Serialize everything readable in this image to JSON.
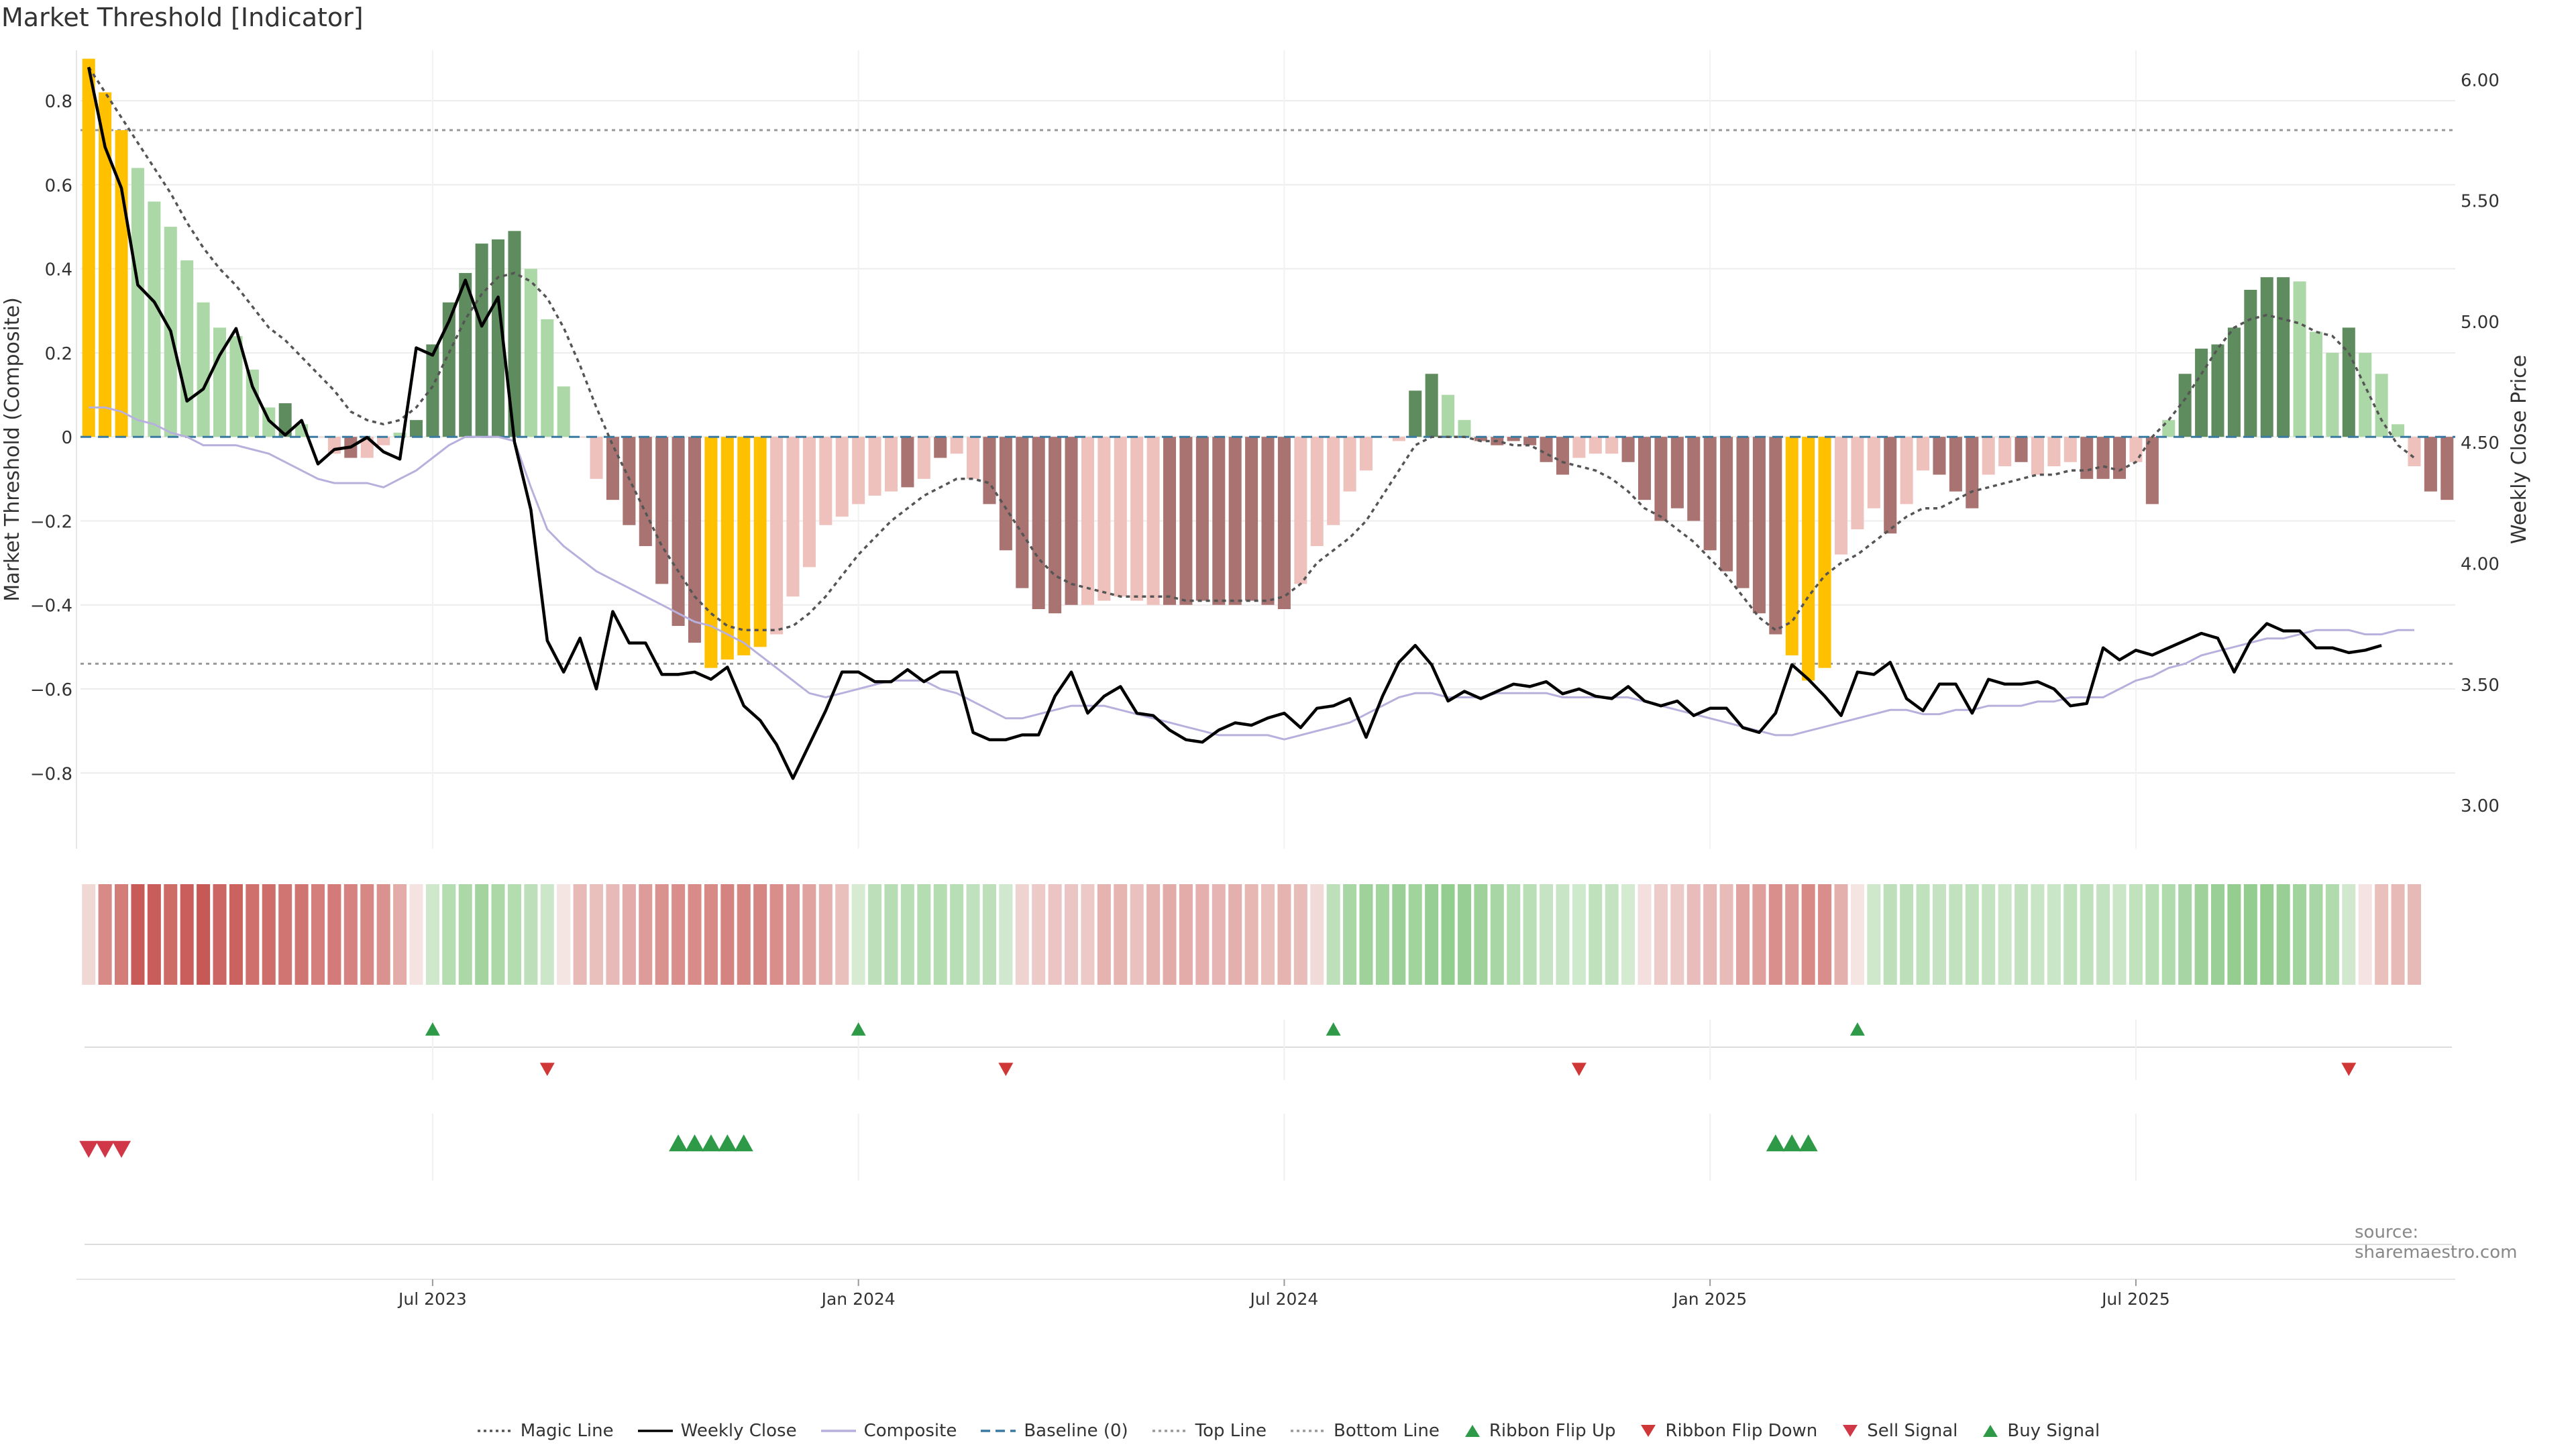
{
  "title": "Market Threshold [Indicator]",
  "source": "source: sharemaestro.com",
  "legend": [
    {
      "label": "Magic Line",
      "kind": "dotted",
      "color": "#555555"
    },
    {
      "label": "Weekly Close",
      "kind": "solid",
      "color": "#000000"
    },
    {
      "label": "Composite",
      "kind": "solid",
      "color": "#b8b0dc"
    },
    {
      "label": "Baseline (0)",
      "kind": "dashed",
      "color": "#3a7aa0"
    },
    {
      "label": "Top Line",
      "kind": "dotted",
      "color": "#999999"
    },
    {
      "label": "Bottom Line",
      "kind": "dotted",
      "color": "#999999"
    },
    {
      "label": "Ribbon Flip Up",
      "kind": "tri-up",
      "color": "#2e9a48"
    },
    {
      "label": "Ribbon Flip Down",
      "kind": "tri-down",
      "color": "#d03838"
    },
    {
      "label": "Sell Signal",
      "kind": "tri-down",
      "color": "#d03848"
    },
    {
      "label": "Buy Signal",
      "kind": "tri-up",
      "color": "#2e9a48"
    }
  ],
  "chart_data": {
    "type": "bar",
    "ylabel": "Market Threshold (Composite)",
    "y2label": "Weekly Close Price",
    "ylim": [
      -0.98,
      0.92
    ],
    "y2lim": [
      2.82,
      6.12
    ],
    "yticks": [
      -0.8,
      -0.6,
      -0.4,
      -0.2,
      0,
      0.2,
      0.4,
      0.6,
      0.8
    ],
    "ytick_labels": [
      "−0.8",
      "−0.6",
      "−0.4",
      "−0.2",
      "0",
      "0.2",
      "0.4",
      "0.6",
      "0.8"
    ],
    "y2ticks": [
      3.0,
      3.5,
      4.0,
      4.5,
      5.0,
      5.5,
      6.0
    ],
    "y2tick_labels": [
      "3.00",
      "3.50",
      "4.00",
      "4.50",
      "5.00",
      "5.50",
      "6.00"
    ],
    "x_ticks": [
      {
        "label": "Jul 2023",
        "index": 21
      },
      {
        "label": "Jan 2024",
        "index": 47
      },
      {
        "label": "Jul 2024",
        "index": 73
      },
      {
        "label": "Jan 2025",
        "index": 99
      },
      {
        "label": "Jul 2025",
        "index": 125
      }
    ],
    "top_line": 0.73,
    "bottom_line": -0.54,
    "baseline": 0,
    "composite": [
      0.9,
      0.82,
      0.73,
      0.64,
      0.56,
      0.5,
      0.42,
      0.32,
      0.26,
      0.24,
      0.16,
      0.07,
      0.08,
      0.03,
      0.0,
      -0.04,
      -0.05,
      -0.05,
      -0.02,
      0.01,
      0.04,
      0.22,
      0.32,
      0.39,
      0.46,
      0.47,
      0.49,
      0.4,
      0.28,
      0.12,
      0.0,
      -0.1,
      -0.15,
      -0.21,
      -0.26,
      -0.35,
      -0.45,
      -0.49,
      -0.55,
      -0.53,
      -0.52,
      -0.5,
      -0.47,
      -0.38,
      -0.31,
      -0.21,
      -0.19,
      -0.16,
      -0.14,
      -0.13,
      -0.12,
      -0.1,
      -0.05,
      -0.04,
      -0.1,
      -0.16,
      -0.27,
      -0.36,
      -0.41,
      -0.42,
      -0.4,
      -0.4,
      -0.39,
      -0.38,
      -0.39,
      -0.4,
      -0.4,
      -0.4,
      -0.39,
      -0.4,
      -0.4,
      -0.39,
      -0.4,
      -0.41,
      -0.35,
      -0.26,
      -0.21,
      -0.13,
      -0.08,
      0.0,
      -0.01,
      0.11,
      0.15,
      0.1,
      0.04,
      -0.01,
      -0.02,
      -0.01,
      -0.02,
      -0.06,
      -0.09,
      -0.05,
      -0.04,
      -0.04,
      -0.06,
      -0.15,
      -0.2,
      -0.17,
      -0.2,
      -0.27,
      -0.32,
      -0.36,
      -0.42,
      -0.47,
      -0.52,
      -0.58,
      -0.55,
      -0.28,
      -0.22,
      -0.17,
      -0.23,
      -0.16,
      -0.08,
      -0.09,
      -0.13,
      -0.17,
      -0.09,
      -0.07,
      -0.06,
      -0.09,
      -0.07,
      -0.06,
      -0.1,
      -0.1,
      -0.1,
      -0.06,
      -0.16,
      0.04,
      0.15,
      0.21,
      0.22,
      0.26,
      0.35,
      0.38,
      0.38,
      0.37,
      0.25,
      0.2,
      0.26,
      0.2,
      0.15,
      0.03,
      -0.07,
      -0.13,
      -0.15
    ],
    "bar_colors": [
      "#ffc000",
      "#ffc000",
      "#ffc000",
      "#acd8a7",
      "#acd8a7",
      "#acd8a7",
      "#acd8a7",
      "#acd8a7",
      "#acd8a7",
      "#acd8a7",
      "#acd8a7",
      "#acd8a7",
      "#5e8c5e",
      "#acd8a7",
      "#eec1bc",
      "#eec1bc",
      "#a87370",
      "#eec1bc",
      "#eec1bc",
      "#acd8a7",
      "#5e8c5e",
      "#5e8c5e",
      "#5e8c5e",
      "#5e8c5e",
      "#5e8c5e",
      "#5e8c5e",
      "#5e8c5e",
      "#acd8a7",
      "#acd8a7",
      "#acd8a7",
      "#eec1bc",
      "#eec1bc",
      "#a87370",
      "#a87370",
      "#a87370",
      "#a87370",
      "#a87370",
      "#a87370",
      "#ffc000",
      "#ffc000",
      "#ffc000",
      "#ffc000",
      "#eec1bc",
      "#eec1bc",
      "#eec1bc",
      "#eec1bc",
      "#eec1bc",
      "#eec1bc",
      "#eec1bc",
      "#eec1bc",
      "#a87370",
      "#eec1bc",
      "#a87370",
      "#eec1bc",
      "#eec1bc",
      "#a87370",
      "#a87370",
      "#a87370",
      "#a87370",
      "#a87370",
      "#a87370",
      "#eec1bc",
      "#eec1bc",
      "#eec1bc",
      "#eec1bc",
      "#eec1bc",
      "#a87370",
      "#a87370",
      "#a87370",
      "#a87370",
      "#a87370",
      "#a87370",
      "#a87370",
      "#a87370",
      "#eec1bc",
      "#eec1bc",
      "#eec1bc",
      "#eec1bc",
      "#eec1bc",
      "#eec1bc",
      "#eec1bc",
      "#5e8c5e",
      "#5e8c5e",
      "#acd8a7",
      "#acd8a7",
      "#a87370",
      "#a87370",
      "#a87370",
      "#a87370",
      "#a87370",
      "#a87370",
      "#eec1bc",
      "#eec1bc",
      "#eec1bc",
      "#a87370",
      "#a87370",
      "#a87370",
      "#a87370",
      "#a87370",
      "#a87370",
      "#a87370",
      "#a87370",
      "#a87370",
      "#a87370",
      "#ffc000",
      "#ffc000",
      "#ffc000",
      "#eec1bc",
      "#eec1bc",
      "#eec1bc",
      "#a87370",
      "#eec1bc",
      "#eec1bc",
      "#a87370",
      "#a87370",
      "#a87370",
      "#eec1bc",
      "#eec1bc",
      "#a87370",
      "#eec1bc",
      "#eec1bc",
      "#eec1bc",
      "#a87370",
      "#a87370",
      "#a87370",
      "#eec1bc",
      "#a87370",
      "#acd8a7",
      "#5e8c5e",
      "#5e8c5e",
      "#5e8c5e",
      "#5e8c5e",
      "#5e8c5e",
      "#5e8c5e",
      "#5e8c5e",
      "#acd8a7",
      "#acd8a7",
      "#acd8a7",
      "#5e8c5e",
      "#acd8a7",
      "#acd8a7",
      "#acd8a7",
      "#eec1bc",
      "#a87370",
      "#a87370"
    ],
    "weekly_close": [
      6.05,
      5.72,
      5.55,
      5.15,
      5.08,
      4.96,
      4.67,
      4.72,
      4.86,
      4.97,
      4.73,
      4.59,
      4.53,
      4.59,
      4.41,
      4.47,
      4.48,
      4.52,
      4.46,
      4.43,
      4.89,
      4.86,
      5.0,
      5.17,
      4.98,
      5.1,
      4.5,
      4.22,
      3.68,
      3.55,
      3.69,
      3.48,
      3.8,
      3.67,
      3.67,
      3.54,
      3.54,
      3.55,
      3.52,
      3.57,
      3.41,
      3.35,
      3.25,
      3.11,
      3.25,
      3.39,
      3.55,
      3.55,
      3.51,
      3.51,
      3.56,
      3.51,
      3.55,
      3.55,
      3.3,
      3.27,
      3.27,
      3.29,
      3.29,
      3.45,
      3.55,
      3.38,
      3.45,
      3.49,
      3.38,
      3.37,
      3.31,
      3.27,
      3.26,
      3.31,
      3.34,
      3.33,
      3.36,
      3.38,
      3.32,
      3.4,
      3.41,
      3.44,
      3.28,
      3.45,
      3.59,
      3.66,
      3.58,
      3.43,
      3.47,
      3.44,
      3.47,
      3.5,
      3.49,
      3.51,
      3.46,
      3.48,
      3.45,
      3.44,
      3.49,
      3.43,
      3.41,
      3.43,
      3.37,
      3.4,
      3.4,
      3.32,
      3.3,
      3.38,
      3.58,
      3.52,
      3.45,
      3.37,
      3.55,
      3.54,
      3.59,
      3.44,
      3.39,
      3.5,
      3.5,
      3.38,
      3.52,
      3.5,
      3.5,
      3.51,
      3.48,
      3.41,
      3.42,
      3.65,
      3.6,
      3.64,
      3.62,
      3.65,
      3.68,
      3.71,
      3.69,
      3.55,
      3.68,
      3.75,
      3.72,
      3.72,
      3.65,
      3.65,
      3.63,
      3.64,
      3.66
    ],
    "composite_line": [
      0.07,
      0.07,
      0.06,
      0.04,
      0.03,
      0.01,
      0.0,
      -0.02,
      -0.02,
      -0.02,
      -0.03,
      -0.04,
      -0.06,
      -0.08,
      -0.1,
      -0.11,
      -0.11,
      -0.11,
      -0.12,
      -0.1,
      -0.08,
      -0.05,
      -0.02,
      0.0,
      0.0,
      0.0,
      -0.01,
      -0.12,
      -0.22,
      -0.26,
      -0.29,
      -0.32,
      -0.34,
      -0.36,
      -0.38,
      -0.4,
      -0.42,
      -0.44,
      -0.45,
      -0.47,
      -0.49,
      -0.52,
      -0.55,
      -0.58,
      -0.61,
      -0.62,
      -0.61,
      -0.6,
      -0.59,
      -0.58,
      -0.58,
      -0.58,
      -0.6,
      -0.61,
      -0.63,
      -0.65,
      -0.67,
      -0.67,
      -0.66,
      -0.65,
      -0.64,
      -0.64,
      -0.64,
      -0.65,
      -0.66,
      -0.67,
      -0.68,
      -0.69,
      -0.7,
      -0.71,
      -0.71,
      -0.71,
      -0.71,
      -0.72,
      -0.71,
      -0.7,
      -0.69,
      -0.68,
      -0.66,
      -0.64,
      -0.62,
      -0.61,
      -0.61,
      -0.62,
      -0.62,
      -0.62,
      -0.61,
      -0.61,
      -0.61,
      -0.61,
      -0.62,
      -0.62,
      -0.62,
      -0.62,
      -0.62,
      -0.63,
      -0.64,
      -0.65,
      -0.66,
      -0.67,
      -0.68,
      -0.69,
      -0.7,
      -0.71,
      -0.71,
      -0.7,
      -0.69,
      -0.68,
      -0.67,
      -0.66,
      -0.65,
      -0.65,
      -0.66,
      -0.66,
      -0.65,
      -0.65,
      -0.64,
      -0.64,
      -0.64,
      -0.63,
      -0.63,
      -0.62,
      -0.62,
      -0.62,
      -0.6,
      -0.58,
      -0.57,
      -0.55,
      -0.54,
      -0.52,
      -0.51,
      -0.5,
      -0.49,
      -0.48,
      -0.48,
      -0.47,
      -0.46,
      -0.46,
      -0.46,
      -0.47,
      -0.47,
      -0.46,
      -0.46
    ],
    "magic_line": [
      0.88,
      0.82,
      0.76,
      0.7,
      0.64,
      0.58,
      0.51,
      0.45,
      0.4,
      0.36,
      0.31,
      0.26,
      0.23,
      0.19,
      0.15,
      0.11,
      0.06,
      0.04,
      0.03,
      0.04,
      0.07,
      0.12,
      0.2,
      0.28,
      0.34,
      0.38,
      0.39,
      0.37,
      0.33,
      0.26,
      0.17,
      0.07,
      -0.02,
      -0.1,
      -0.18,
      -0.26,
      -0.32,
      -0.38,
      -0.42,
      -0.45,
      -0.46,
      -0.46,
      -0.46,
      -0.45,
      -0.42,
      -0.38,
      -0.33,
      -0.28,
      -0.24,
      -0.2,
      -0.17,
      -0.14,
      -0.12,
      -0.1,
      -0.1,
      -0.11,
      -0.17,
      -0.23,
      -0.29,
      -0.33,
      -0.35,
      -0.36,
      -0.37,
      -0.38,
      -0.38,
      -0.38,
      -0.38,
      -0.39,
      -0.39,
      -0.39,
      -0.39,
      -0.39,
      -0.39,
      -0.38,
      -0.35,
      -0.3,
      -0.27,
      -0.24,
      -0.2,
      -0.14,
      -0.08,
      -0.02,
      0.0,
      0.0,
      0.0,
      -0.01,
      -0.01,
      -0.02,
      -0.02,
      -0.04,
      -0.06,
      -0.07,
      -0.08,
      -0.1,
      -0.13,
      -0.17,
      -0.19,
      -0.22,
      -0.25,
      -0.29,
      -0.33,
      -0.38,
      -0.43,
      -0.46,
      -0.44,
      -0.38,
      -0.33,
      -0.3,
      -0.28,
      -0.25,
      -0.22,
      -0.19,
      -0.17,
      -0.17,
      -0.15,
      -0.13,
      -0.12,
      -0.11,
      -0.1,
      -0.09,
      -0.09,
      -0.08,
      -0.08,
      -0.07,
      -0.08,
      -0.06,
      0.0,
      0.04,
      0.09,
      0.15,
      0.21,
      0.26,
      0.28,
      0.29,
      0.28,
      0.27,
      0.25,
      0.24,
      0.2,
      0.12,
      0.04,
      -0.02,
      -0.05
    ],
    "ribbon_colors": [
      "#f0d8d5",
      "#d88a86",
      "#d47c78",
      "#c85a58",
      "#c95d5b",
      "#cd6b67",
      "#c95e5c",
      "#c65956",
      "#cc6664",
      "#ca6360",
      "#cf706d",
      "#ce6e6a",
      "#d17572",
      "#d07471",
      "#d47f7b",
      "#d37b78",
      "#d58280",
      "#d78885",
      "#da928f",
      "#e3aca9",
      "#f4e3e1",
      "#cfe8cc",
      "#b5ddb2",
      "#acd8a8",
      "#a3d4a0",
      "#acd8a8",
      "#b3dcaf",
      "#bde0ba",
      "#cce6c9",
      "#f4e4e2",
      "#e8bab7",
      "#eac0bd",
      "#e8bab7",
      "#e3acaa",
      "#dd9c99",
      "#da928f",
      "#d98e8b",
      "#d88b88",
      "#d88a87",
      "#d48380",
      "#d58582",
      "#d58582",
      "#d98e8b",
      "#dc9896",
      "#e0a3a0",
      "#e5b1ae",
      "#eac0bd",
      "#d6ebd2",
      "#bde0ba",
      "#b6ddb3",
      "#b7deb4",
      "#b5ddb2",
      "#b5ddb2",
      "#b8deb5",
      "#c0e1bd",
      "#bde0ba",
      "#d0e8cd",
      "#efd3d1",
      "#eccac7",
      "#ebc5c3",
      "#ebc5c3",
      "#ecc9c6",
      "#e5b3b0",
      "#e6b5b2",
      "#eac1be",
      "#e5b3b0",
      "#e2aba8",
      "#e3aca9",
      "#e4afac",
      "#e6b5b3",
      "#e4b0ad",
      "#e7b7b4",
      "#eac0bd",
      "#e5b3b0",
      "#e8bcb9",
      "#f1dbd9",
      "#bde0ba",
      "#a8d6a4",
      "#9fd29b",
      "#a2d49e",
      "#9ad097",
      "#a1d39d",
      "#96ce93",
      "#94cd90",
      "#97ce94",
      "#9fd29b",
      "#a8d6a5",
      "#b5ddb2",
      "#b9dfb6",
      "#c6e4c3",
      "#c8e5c5",
      "#ceeacc",
      "#bfe1bc",
      "#c4e3c1",
      "#d4ebd2",
      "#f3e0de",
      "#edcbc8",
      "#eccac7",
      "#e8bcba",
      "#e7b8b5",
      "#e8bbb8",
      "#e0a3a0",
      "#df9f9c",
      "#d98f8c",
      "#dc9996",
      "#d88a87",
      "#d98e8b",
      "#e4b0ad",
      "#f4e4e2",
      "#cfe8cc",
      "#bde0ba",
      "#bde0ba",
      "#bfe1bc",
      "#c5e3c2",
      "#c1e2be",
      "#bfe1bc",
      "#c4e3c1",
      "#c9e6c6",
      "#c2e2bf",
      "#c8e5c5",
      "#c9e6c6",
      "#bfe1bc",
      "#bfe1bc",
      "#c3e2c0",
      "#cae6c7",
      "#c0e2bd",
      "#b7deb4",
      "#b0dbad",
      "#a7d6a4",
      "#9fd29b",
      "#9ad097",
      "#95cd91",
      "#94cd90",
      "#95cd91",
      "#99cf95",
      "#a1d39d",
      "#a8d6a4",
      "#b0dbad",
      "#d1e8ce",
      "#f4e3e1",
      "#eac0bd",
      "#e8bab7",
      "#e8bab7"
    ],
    "ribbon_flip_up": [
      21,
      47,
      76,
      108
    ],
    "ribbon_flip_down": [
      28,
      56,
      91,
      138
    ],
    "sell_signal": [
      0,
      1,
      2
    ],
    "buy_signal": [
      36,
      37,
      38,
      39,
      40,
      103,
      104,
      105
    ]
  }
}
